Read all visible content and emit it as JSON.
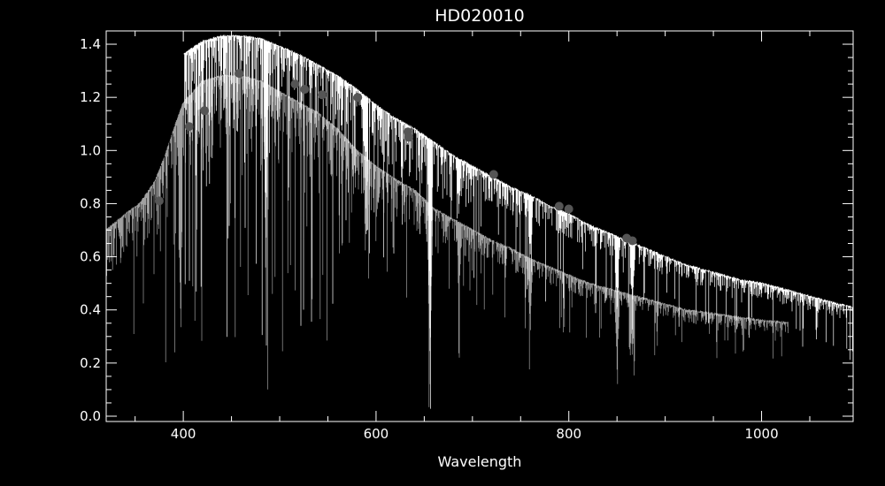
{
  "chart_data": {
    "type": "line",
    "title": "HD020010",
    "xlabel": "Wavelength",
    "ylabel": "",
    "xlim": [
      320,
      1095
    ],
    "ylim": [
      -0.02,
      1.45
    ],
    "grid": false,
    "background": "#000000",
    "x_ticks": {
      "major": [
        400,
        600,
        800,
        1000
      ],
      "labels": [
        "400",
        "600",
        "800",
        "1000"
      ],
      "minor_step": 50
    },
    "y_ticks": {
      "major": [
        0.0,
        0.2,
        0.4,
        0.6,
        0.8,
        1.0,
        1.2,
        1.4
      ],
      "labels": [
        "0.0",
        "0.2",
        "0.4",
        "0.6",
        "0.8",
        "1.0",
        "1.2",
        "1.4"
      ],
      "minor_step": 0.05
    },
    "series": [
      {
        "kind": "spectrum",
        "color": "#ffffff",
        "x_range": [
          400,
          1095
        ],
        "continuum": [
          [
            400,
            1.36
          ],
          [
            420,
            1.41
          ],
          [
            440,
            1.43
          ],
          [
            460,
            1.43
          ],
          [
            480,
            1.42
          ],
          [
            500,
            1.39
          ],
          [
            520,
            1.36
          ],
          [
            540,
            1.32
          ],
          [
            560,
            1.28
          ],
          [
            580,
            1.23
          ],
          [
            600,
            1.17
          ],
          [
            620,
            1.12
          ],
          [
            640,
            1.08
          ],
          [
            660,
            1.03
          ],
          [
            680,
            0.98
          ],
          [
            700,
            0.94
          ],
          [
            720,
            0.9
          ],
          [
            740,
            0.86
          ],
          [
            760,
            0.83
          ],
          [
            780,
            0.79
          ],
          [
            800,
            0.76
          ],
          [
            820,
            0.72
          ],
          [
            840,
            0.69
          ],
          [
            860,
            0.66
          ],
          [
            880,
            0.63
          ],
          [
            900,
            0.6
          ],
          [
            920,
            0.57
          ],
          [
            940,
            0.55
          ],
          [
            960,
            0.53
          ],
          [
            980,
            0.51
          ],
          [
            1000,
            0.5
          ],
          [
            1020,
            0.48
          ],
          [
            1040,
            0.46
          ],
          [
            1060,
            0.44
          ],
          [
            1080,
            0.42
          ],
          [
            1095,
            0.41
          ]
        ]
      },
      {
        "kind": "spectrum",
        "color": "#a0a0a0",
        "x_range": [
          320,
          1028
        ],
        "continuum": [
          [
            320,
            0.7
          ],
          [
            340,
            0.76
          ],
          [
            355,
            0.8
          ],
          [
            370,
            0.88
          ],
          [
            380,
            0.97
          ],
          [
            390,
            1.08
          ],
          [
            400,
            1.18
          ],
          [
            410,
            1.22
          ],
          [
            420,
            1.26
          ],
          [
            440,
            1.28
          ],
          [
            460,
            1.28
          ],
          [
            480,
            1.26
          ],
          [
            500,
            1.22
          ],
          [
            520,
            1.18
          ],
          [
            540,
            1.14
          ],
          [
            560,
            1.08
          ],
          [
            580,
            1.0
          ],
          [
            600,
            0.94
          ],
          [
            620,
            0.89
          ],
          [
            640,
            0.85
          ],
          [
            660,
            0.78
          ],
          [
            680,
            0.74
          ],
          [
            700,
            0.7
          ],
          [
            720,
            0.66
          ],
          [
            740,
            0.63
          ],
          [
            760,
            0.59
          ],
          [
            780,
            0.56
          ],
          [
            800,
            0.53
          ],
          [
            820,
            0.5
          ],
          [
            840,
            0.48
          ],
          [
            860,
            0.46
          ],
          [
            880,
            0.44
          ],
          [
            900,
            0.42
          ],
          [
            920,
            0.4
          ],
          [
            940,
            0.39
          ],
          [
            960,
            0.38
          ],
          [
            980,
            0.37
          ],
          [
            1000,
            0.36
          ],
          [
            1028,
            0.35
          ]
        ]
      },
      {
        "kind": "points",
        "color": "#555555",
        "points": [
          [
            375,
            0.81
          ],
          [
            406,
            1.09
          ],
          [
            422,
            1.15
          ],
          [
            458,
            1.29
          ],
          [
            516,
            1.25
          ],
          [
            526,
            1.23
          ],
          [
            544,
            1.21
          ],
          [
            581,
            1.2
          ],
          [
            633,
            1.07
          ],
          [
            634,
            1.05
          ],
          [
            722,
            0.91
          ],
          [
            790,
            0.79
          ],
          [
            800,
            0.78
          ],
          [
            860,
            0.67
          ],
          [
            866,
            0.66
          ]
        ]
      }
    ],
    "absorption_lines": [
      {
        "x": 397,
        "depth": 0.72
      },
      {
        "x": 486,
        "depth": 0.55
      },
      {
        "x": 589,
        "depth": 0.2
      },
      {
        "x": 656,
        "depth": 0.62
      },
      {
        "x": 686,
        "depth": 0.18
      },
      {
        "x": 760,
        "depth": 0.22
      },
      {
        "x": 850,
        "depth": 0.25
      },
      {
        "x": 866,
        "depth": 0.22
      }
    ]
  }
}
